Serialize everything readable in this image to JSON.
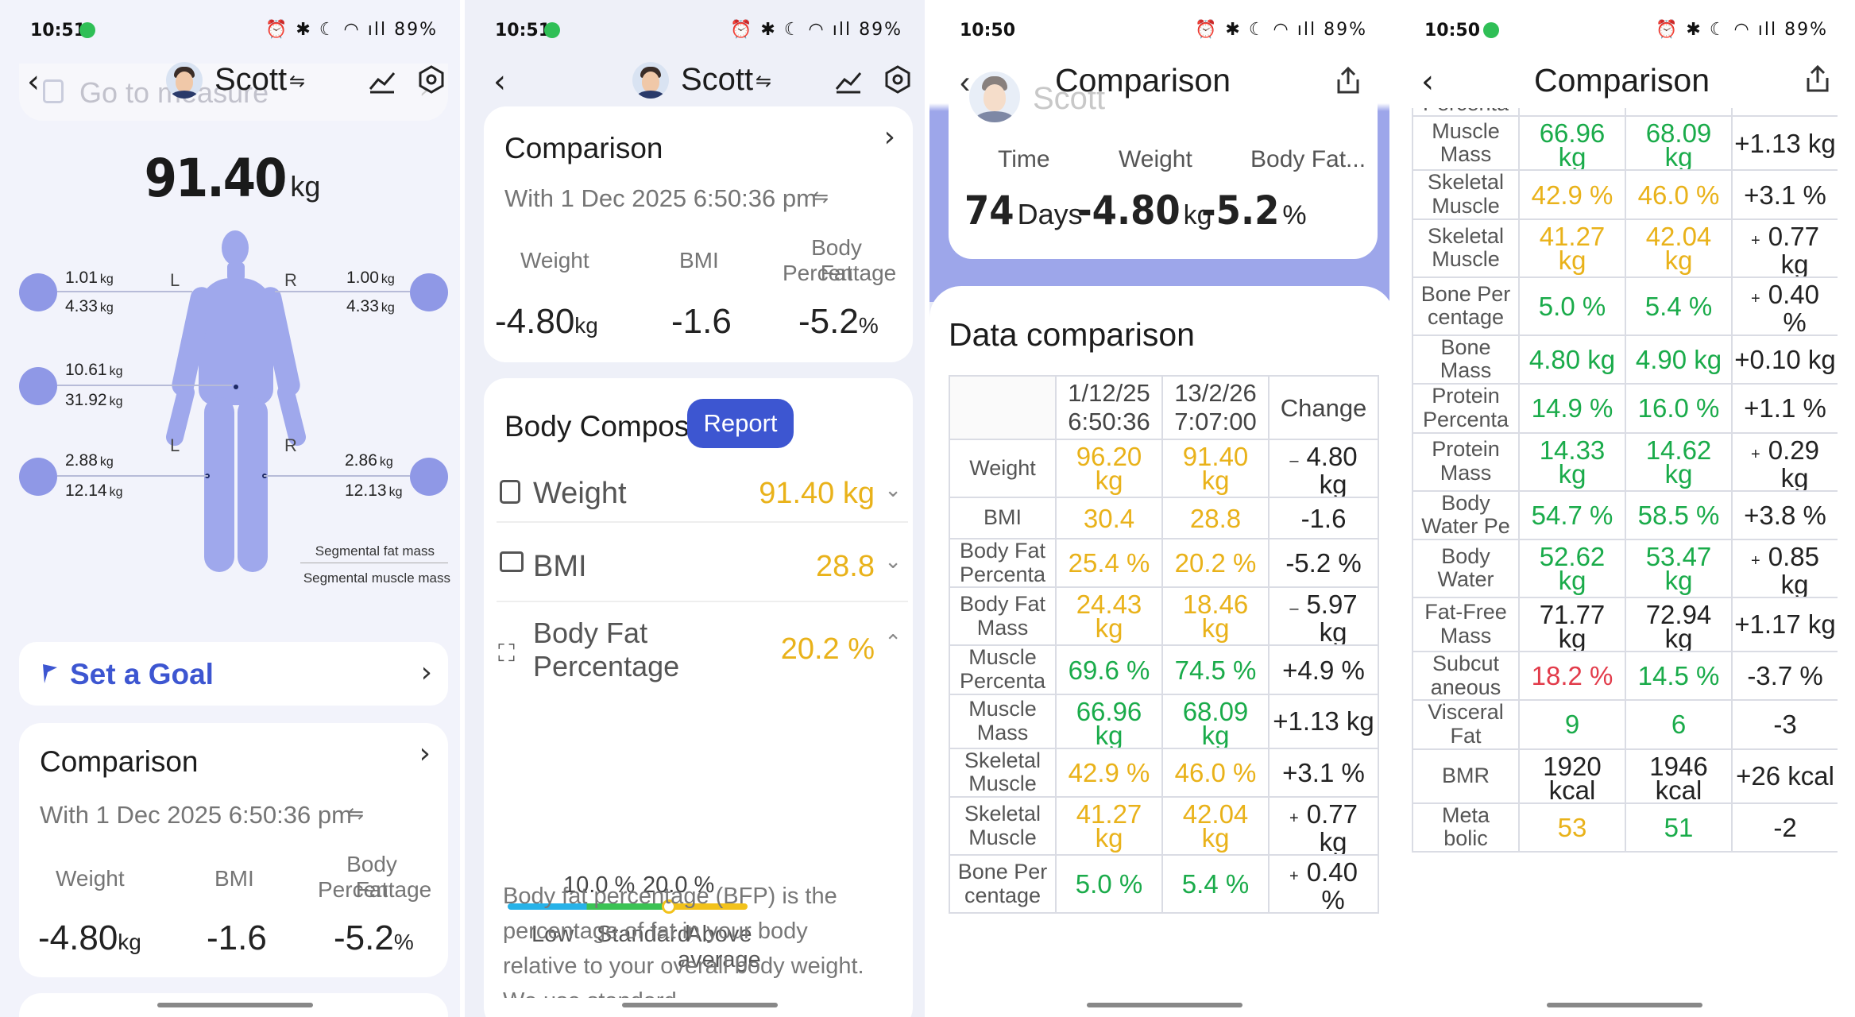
{
  "status_bar": [
    {
      "time": "10:51",
      "battery": "89%"
    },
    {
      "time": "10:51",
      "battery": "89%"
    },
    {
      "time": "10:50",
      "battery": "89%"
    },
    {
      "time": "10:50",
      "battery": "89%"
    }
  ],
  "colors": {
    "accent_blue": "#3d56d1",
    "good_green": "#1aab4a",
    "warn_yellow": "#e9b21a",
    "bad_red": "#e23b4a",
    "body_model": "#9fa8ec"
  },
  "icons": {
    "back": "back-arrow-icon",
    "trend": "trend-chart-icon",
    "settings": "settings-hex-icon",
    "share": "share-icon",
    "switch": "switch-arrows-icon",
    "flag": "flag-icon",
    "chevron": "chevron-right-icon"
  },
  "screen1": {
    "user_name": "Scott",
    "switch_glyph": "⇋",
    "measure_hint": "Go to measure",
    "weight_value": "91.40",
    "weight_unit": "kg",
    "side_left": "L",
    "side_right": "R",
    "segments": {
      "left_arm": {
        "fat": "1.01",
        "fat_unit": "kg",
        "muscle": "4.33",
        "muscle_unit": "kg"
      },
      "right_arm": {
        "fat": "1.00",
        "fat_unit": "kg",
        "muscle": "4.33",
        "muscle_unit": "kg"
      },
      "trunk": {
        "fat": "10.61",
        "fat_unit": "kg",
        "muscle": "31.92",
        "muscle_unit": "kg"
      },
      "left_leg": {
        "fat": "2.88",
        "fat_unit": "kg",
        "muscle": "12.14",
        "muscle_unit": "kg"
      },
      "right_leg": {
        "fat": "2.86",
        "fat_unit": "kg",
        "muscle": "12.13",
        "muscle_unit": "kg"
      }
    },
    "legend_fat": "Segmental fat mass",
    "legend_muscle": "Segmental muscle mass",
    "goal_label": "Set a Goal",
    "comparison": {
      "title": "Comparison",
      "with": "With 1 Dec 2025 6:50:36 pm",
      "weight_label": "Weight",
      "bmi_label": "BMI",
      "bodyfat_label_1": "Body Fat",
      "bodyfat_label_2": "Percentage",
      "weight_val": "-4.80",
      "weight_unit": "kg",
      "bmi_val": "-1.6",
      "bodyfat_val": "-5.2",
      "bodyfat_unit": "%"
    }
  },
  "screen2": {
    "user_name": "Scott",
    "switch_glyph": "⇋",
    "comparison": {
      "title": "Comparison",
      "with": "With 1 Dec 2025 6:50:36 pm",
      "weight_label": "Weight",
      "bmi_label": "BMI",
      "bodyfat_label_1": "Body Fat",
      "bodyfat_label_2": "Percentage",
      "weight_val": "-4.80",
      "weight_unit": "kg",
      "bmi_val": "-1.6",
      "bodyfat_val": "-5.2",
      "bodyfat_unit": "%"
    },
    "body_comp": {
      "title": "Body Composition",
      "report_button": "Report",
      "weight_label": "Weight",
      "weight_value": "91.40 kg",
      "bmi_label": "BMI",
      "bmi_value": "28.8",
      "bfp_label_1": "Body Fat",
      "bfp_label_2": "Percentage",
      "bfp_value": "20.2 %",
      "threshold_low": "10.0 %",
      "threshold_high": "20.0 %",
      "marker_position_pct": "20.2",
      "range_low": "Low",
      "range_standard": "Standard",
      "range_above_1": "Above",
      "range_above_2": "average",
      "description": "Body fat percentage (BFP) is the percentage of fat in your body relative to your overall body weight. We use standard..."
    }
  },
  "screen3": {
    "title": "Comparison",
    "bg_name": "Scott",
    "time_label": "Time",
    "weight_label": "Weight",
    "bodyfat_label": "Body Fat...",
    "time_val": "74",
    "time_unit": "Days",
    "weight_val": "-4.80",
    "weight_unit": "kg",
    "bodyfat_val": "-5.2",
    "bodyfat_unit": "%",
    "data_comparison_title": "Data comparison",
    "col1_date": "1/12/25",
    "col1_time": "6:50:36",
    "col2_date": "13/2/26",
    "col2_time": "7:07:00",
    "col_change": "Change"
  },
  "screen4": {
    "title": "Comparison"
  },
  "comparison_rows": [
    {
      "label1": "Weight",
      "label2": "",
      "v1": "96.20",
      "v1u": "kg",
      "c1": "yellow",
      "v2": "91.40",
      "v2u": "kg",
      "c2": "yellow",
      "change": "4.80",
      "changeu": "kg",
      "sign": "–"
    },
    {
      "label1": "BMI",
      "label2": "",
      "v1": "30.4",
      "v1u": "",
      "c1": "yellow",
      "v2": "28.8",
      "v2u": "",
      "c2": "yellow",
      "change": "-1.6",
      "changeu": "",
      "sign": ""
    },
    {
      "label1": "Body Fat",
      "label2": "Percenta",
      "v1": "25.4 %",
      "v1u": "",
      "c1": "yellow",
      "v2": "20.2 %",
      "v2u": "",
      "c2": "yellow",
      "change": "-5.2 %",
      "changeu": "",
      "sign": ""
    },
    {
      "label1": "Body Fat",
      "label2": "Mass",
      "v1": "24.43",
      "v1u": "kg",
      "c1": "yellow",
      "v2": "18.46",
      "v2u": "kg",
      "c2": "yellow",
      "change": "5.97",
      "changeu": "kg",
      "sign": "–"
    },
    {
      "label1": "Muscle",
      "label2": "Percenta",
      "v1": "69.6 %",
      "v1u": "",
      "c1": "green",
      "v2": "74.5 %",
      "v2u": "",
      "c2": "green",
      "change": "+4.9 %",
      "changeu": "",
      "sign": ""
    },
    {
      "label1": "Muscle",
      "label2": "Mass",
      "v1": "66.96",
      "v1u": "kg",
      "c1": "green",
      "v2": "68.09",
      "v2u": "kg",
      "c2": "green",
      "change": "+1.13 kg",
      "changeu": "",
      "sign": ""
    },
    {
      "label1": "Skeletal",
      "label2": "Muscle",
      "v1": "42.9 %",
      "v1u": "",
      "c1": "yellow",
      "v2": "46.0 %",
      "v2u": "",
      "c2": "yellow",
      "change": "+3.1 %",
      "changeu": "",
      "sign": ""
    },
    {
      "label1": "Skeletal",
      "label2": "Muscle",
      "v1": "41.27",
      "v1u": "kg",
      "c1": "yellow",
      "v2": "42.04",
      "v2u": "kg",
      "c2": "yellow",
      "change": "0.77",
      "changeu": "kg",
      "sign": "+"
    },
    {
      "label1": "Bone Per",
      "label2": "centage",
      "v1": "5.0 %",
      "v1u": "",
      "c1": "green",
      "v2": "5.4 %",
      "v2u": "",
      "c2": "green",
      "change": "0.40",
      "changeu": "%",
      "sign": "+"
    },
    {
      "label1": "Bone",
      "label2": "Mass",
      "v1": "4.80 kg",
      "v1u": "",
      "c1": "green",
      "v2": "4.90 kg",
      "v2u": "",
      "c2": "green",
      "change": "+0.10 kg",
      "changeu": "",
      "sign": ""
    },
    {
      "label1": "Protein",
      "label2": "Percenta",
      "v1": "14.9 %",
      "v1u": "",
      "c1": "green",
      "v2": "16.0 %",
      "v2u": "",
      "c2": "green",
      "change": "+1.1 %",
      "changeu": "",
      "sign": ""
    },
    {
      "label1": "Protein",
      "label2": "Mass",
      "v1": "14.33",
      "v1u": "kg",
      "c1": "green",
      "v2": "14.62",
      "v2u": "kg",
      "c2": "green",
      "change": "0.29",
      "changeu": "kg",
      "sign": "+"
    },
    {
      "label1": "Body",
      "label2": "Water Pe",
      "v1": "54.7 %",
      "v1u": "",
      "c1": "green",
      "v2": "58.5 %",
      "v2u": "",
      "c2": "green",
      "change": "+3.8 %",
      "changeu": "",
      "sign": ""
    },
    {
      "label1": "Body",
      "label2": "Water",
      "v1": "52.62",
      "v1u": "kg",
      "c1": "green",
      "v2": "53.47",
      "v2u": "kg",
      "c2": "green",
      "change": "0.85",
      "changeu": "kg",
      "sign": "+"
    },
    {
      "label1": "Fat-Free",
      "label2": "Mass",
      "v1": "71.77",
      "v1u": "kg",
      "c1": "dark",
      "v2": "72.94",
      "v2u": "kg",
      "c2": "dark",
      "change": "+1.17 kg",
      "changeu": "",
      "sign": ""
    },
    {
      "label1": "Subcut",
      "label2": "aneous",
      "v1": "18.2 %",
      "v1u": "",
      "c1": "red",
      "v2": "14.5 %",
      "v2u": "",
      "c2": "green",
      "change": "-3.7 %",
      "changeu": "",
      "sign": ""
    },
    {
      "label1": "Visceral",
      "label2": "Fat",
      "v1": "9",
      "v1u": "",
      "c1": "green",
      "v2": "6",
      "v2u": "",
      "c2": "green",
      "change": "-3",
      "changeu": "",
      "sign": ""
    },
    {
      "label1": "BMR",
      "label2": "",
      "v1": "1920",
      "v1u": "kcal",
      "c1": "dark",
      "v2": "1946",
      "v2u": "kcal",
      "c2": "dark",
      "change": "+26 kcal",
      "changeu": "",
      "sign": ""
    },
    {
      "label1": "Meta",
      "label2": "bolic",
      "v1": "53",
      "v1u": "",
      "c1": "yellow",
      "v2": "51",
      "v2u": "",
      "c2": "green",
      "change": "-2",
      "changeu": "",
      "sign": ""
    }
  ]
}
